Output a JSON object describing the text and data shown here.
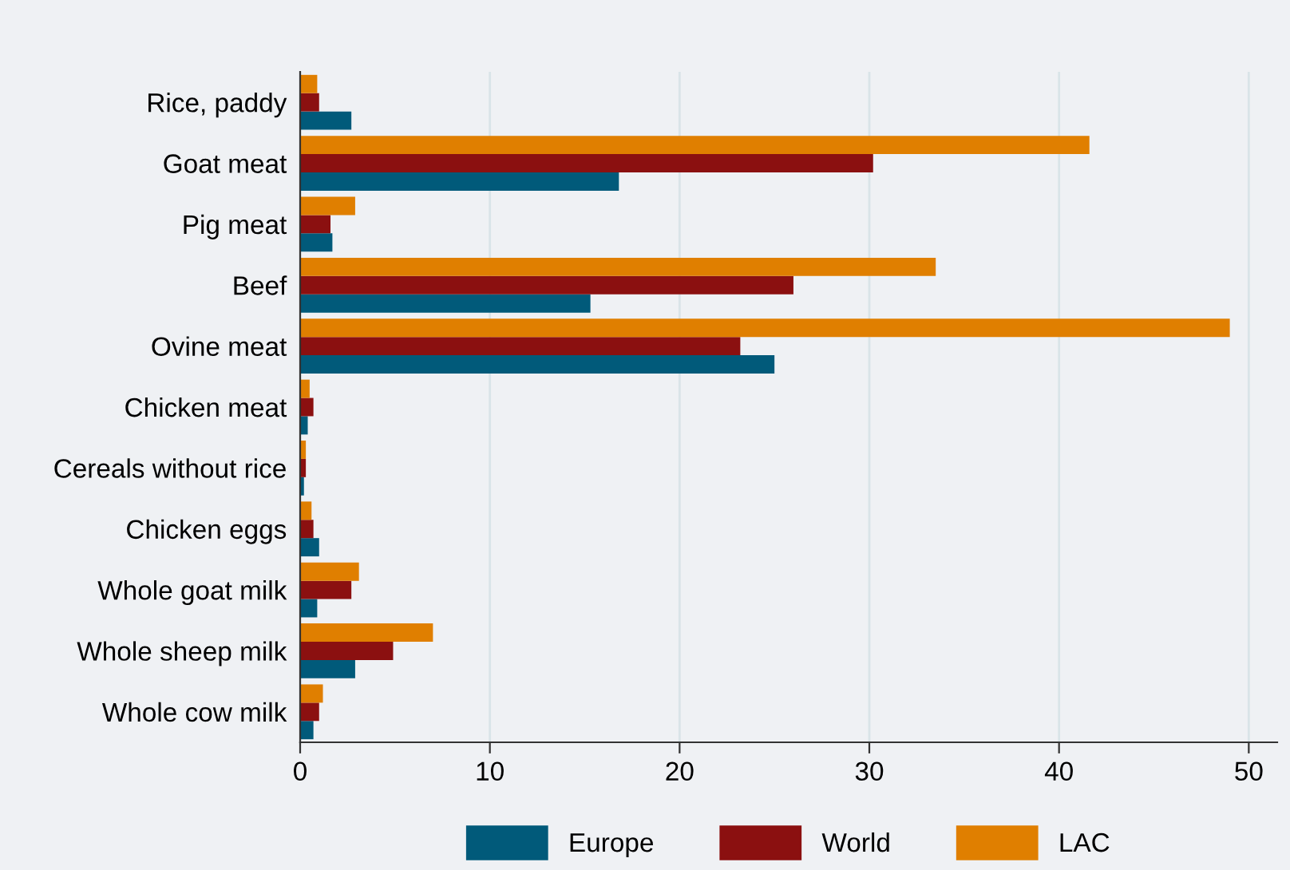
{
  "chart_data": {
    "type": "bar",
    "orientation": "horizontal",
    "categories": [
      "Rice, paddy",
      "Goat meat",
      "Pig meat",
      "Beef",
      "Ovine meat",
      "Chicken meat",
      "Cereals without rice",
      "Chicken eggs",
      "Whole goat milk",
      "Whole sheep milk",
      "Whole cow milk"
    ],
    "series": [
      {
        "name": "Europe",
        "color": "#015a7a",
        "values": [
          2.7,
          16.8,
          1.7,
          15.3,
          25.0,
          0.4,
          0.2,
          1.0,
          0.9,
          2.9,
          0.7
        ]
      },
      {
        "name": "World",
        "color": "#8b1010",
        "values": [
          1.0,
          30.2,
          1.6,
          26.0,
          23.2,
          0.7,
          0.3,
          0.7,
          2.7,
          4.9,
          1.0
        ]
      },
      {
        "name": "LAC",
        "color": "#e07f00",
        "values": [
          0.9,
          41.6,
          2.9,
          33.5,
          49.0,
          0.5,
          0.3,
          0.6,
          3.1,
          7.0,
          1.2
        ]
      }
    ],
    "xlim": [
      0,
      51.5
    ],
    "xticks": [
      0,
      10,
      20,
      30,
      40,
      50
    ],
    "grid": "x",
    "legend": "bottom"
  }
}
